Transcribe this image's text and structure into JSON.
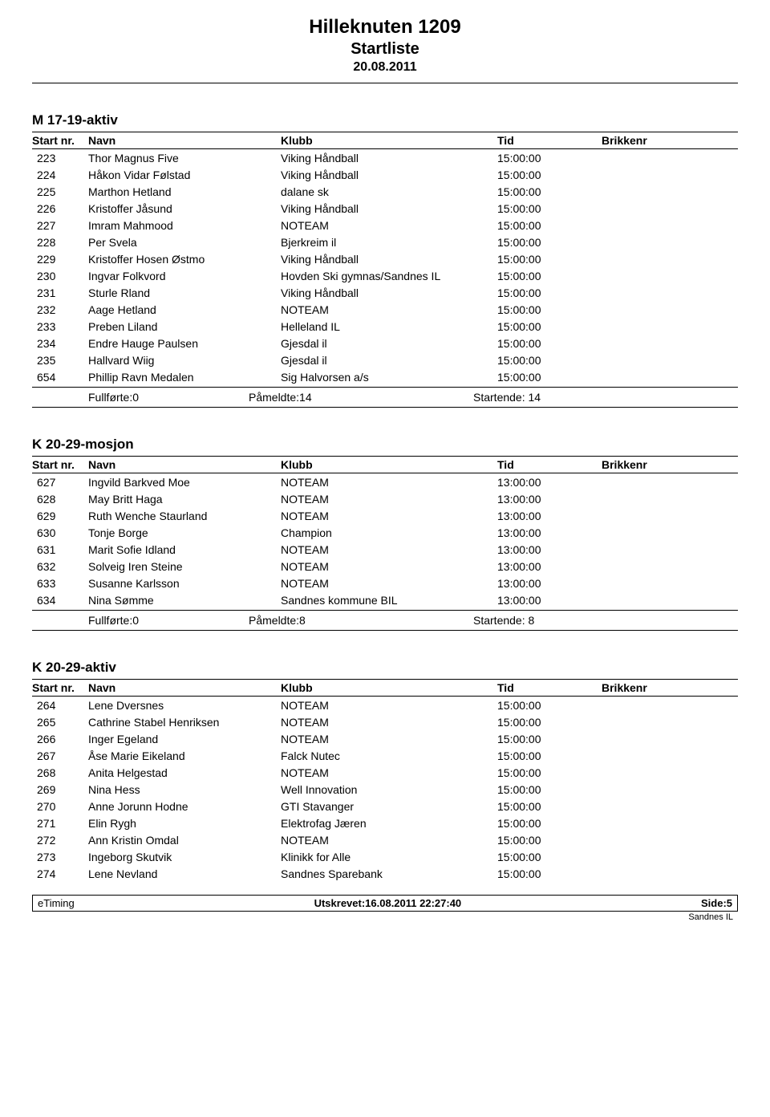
{
  "header": {
    "title": "Hilleknuten 1209",
    "subtitle": "Startliste",
    "date": "20.08.2011"
  },
  "columns": {
    "startnr": "Start nr.",
    "navn": "Navn",
    "klubb": "Klubb",
    "tid": "Tid",
    "brikkenr": "Brikkenr"
  },
  "sections": [
    {
      "title": "M 17-19-aktiv",
      "rows": [
        {
          "nr": "223",
          "navn": "Thor Magnus Five",
          "klubb": "Viking Håndball",
          "tid": "15:00:00"
        },
        {
          "nr": "224",
          "navn": "Håkon Vidar Følstad",
          "klubb": "Viking Håndball",
          "tid": "15:00:00"
        },
        {
          "nr": "225",
          "navn": "Marthon Hetland",
          "klubb": "dalane sk",
          "tid": "15:00:00"
        },
        {
          "nr": "226",
          "navn": "Kristoffer Jåsund",
          "klubb": "Viking Håndball",
          "tid": "15:00:00"
        },
        {
          "nr": "227",
          "navn": "Imram Mahmood",
          "klubb": "NOTEAM",
          "tid": "15:00:00"
        },
        {
          "nr": "228",
          "navn": "Per Svela",
          "klubb": "Bjerkreim il",
          "tid": "15:00:00"
        },
        {
          "nr": "229",
          "navn": "Kristoffer Hosen Østmo",
          "klubb": "Viking Håndball",
          "tid": "15:00:00"
        },
        {
          "nr": "230",
          "navn": "Ingvar Folkvord",
          "klubb": "Hovden Ski gymnas/Sandnes IL",
          "tid": "15:00:00"
        },
        {
          "nr": "231",
          "navn": "Sturle Rland",
          "klubb": "Viking Håndball",
          "tid": "15:00:00"
        },
        {
          "nr": "232",
          "navn": "Aage Hetland",
          "klubb": "NOTEAM",
          "tid": "15:00:00"
        },
        {
          "nr": "233",
          "navn": "Preben Liland",
          "klubb": "Helleland IL",
          "tid": "15:00:00"
        },
        {
          "nr": "234",
          "navn": "Endre Hauge Paulsen",
          "klubb": "Gjesdal il",
          "tid": "15:00:00"
        },
        {
          "nr": "235",
          "navn": "Hallvard Wiig",
          "klubb": "Gjesdal il",
          "tid": "15:00:00"
        },
        {
          "nr": "654",
          "navn": "Phillip Ravn Medalen",
          "klubb": "Sig Halvorsen a/s",
          "tid": "15:00:00"
        }
      ],
      "summary": {
        "fullforte": "Fullførte:0",
        "pameldte": "Påmeldte:14",
        "startende": "Startende: 14"
      }
    },
    {
      "title": "K 20-29-mosjon",
      "rows": [
        {
          "nr": "627",
          "navn": "Ingvild Barkved Moe",
          "klubb": "NOTEAM",
          "tid": "13:00:00"
        },
        {
          "nr": "628",
          "navn": "May Britt Haga",
          "klubb": "NOTEAM",
          "tid": "13:00:00"
        },
        {
          "nr": "629",
          "navn": "Ruth Wenche Staurland",
          "klubb": "NOTEAM",
          "tid": "13:00:00"
        },
        {
          "nr": "630",
          "navn": "Tonje Borge",
          "klubb": "Champion",
          "tid": "13:00:00"
        },
        {
          "nr": "631",
          "navn": "Marit Sofie Idland",
          "klubb": "NOTEAM",
          "tid": "13:00:00"
        },
        {
          "nr": "632",
          "navn": "Solveig Iren Steine",
          "klubb": "NOTEAM",
          "tid": "13:00:00"
        },
        {
          "nr": "633",
          "navn": "Susanne Karlsson",
          "klubb": "NOTEAM",
          "tid": "13:00:00"
        },
        {
          "nr": "634",
          "navn": "Nina Sømme",
          "klubb": "Sandnes kommune BIL",
          "tid": "13:00:00"
        }
      ],
      "summary": {
        "fullforte": "Fullførte:0",
        "pameldte": "Påmeldte:8",
        "startende": "Startende: 8"
      }
    },
    {
      "title": "K 20-29-aktiv",
      "rows": [
        {
          "nr": "264",
          "navn": "Lene Dversnes",
          "klubb": "NOTEAM",
          "tid": "15:00:00"
        },
        {
          "nr": "265",
          "navn": "Cathrine Stabel Henriksen",
          "klubb": "NOTEAM",
          "tid": "15:00:00"
        },
        {
          "nr": "266",
          "navn": "Inger Egeland",
          "klubb": "NOTEAM",
          "tid": "15:00:00"
        },
        {
          "nr": "267",
          "navn": "Åse Marie Eikeland",
          "klubb": "Falck Nutec",
          "tid": "15:00:00"
        },
        {
          "nr": "268",
          "navn": "Anita Helgestad",
          "klubb": "NOTEAM",
          "tid": "15:00:00"
        },
        {
          "nr": "269",
          "navn": "Nina Hess",
          "klubb": "Well Innovation",
          "tid": "15:00:00"
        },
        {
          "nr": "270",
          "navn": "Anne Jorunn Hodne",
          "klubb": "GTI Stavanger",
          "tid": "15:00:00"
        },
        {
          "nr": "271",
          "navn": "Elin Rygh",
          "klubb": "Elektrofag Jæren",
          "tid": "15:00:00"
        },
        {
          "nr": "272",
          "navn": "Ann Kristin Omdal",
          "klubb": "NOTEAM",
          "tid": "15:00:00"
        },
        {
          "nr": "273",
          "navn": "Ingeborg Skutvik",
          "klubb": "Klinikk for Alle",
          "tid": "15:00:00"
        },
        {
          "nr": "274",
          "navn": "Lene Nevland",
          "klubb": "Sandnes Sparebank",
          "tid": "15:00:00"
        }
      ]
    }
  ],
  "footer": {
    "left": "eTiming",
    "center": "Utskrevet:16.08.2011 22:27:40",
    "right": "Side:5",
    "sub": "Sandnes IL"
  },
  "style": {
    "font_family": "Arial",
    "background_color": "#ffffff",
    "text_color": "#000000",
    "rule_color": "#000000"
  }
}
